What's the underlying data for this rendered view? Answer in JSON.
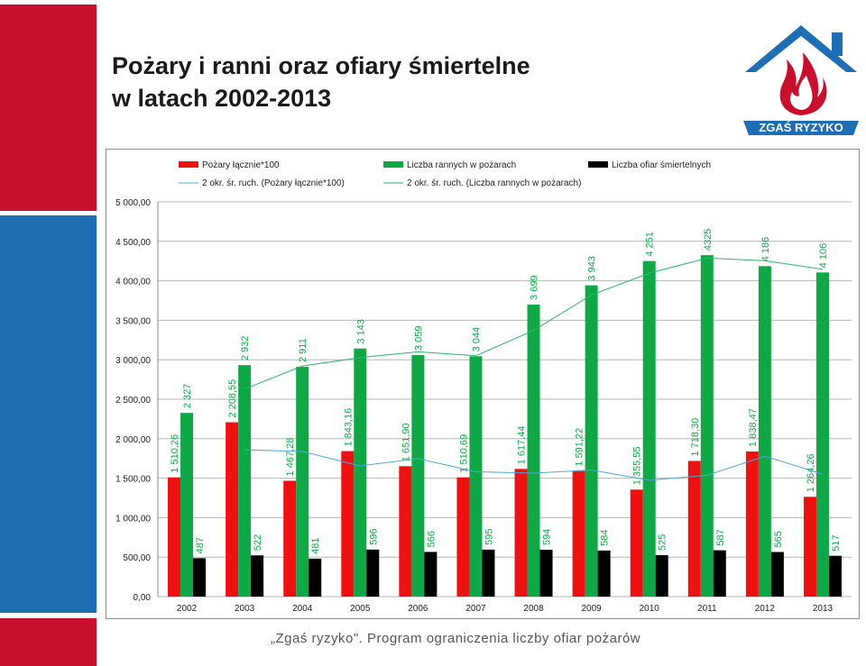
{
  "page": {
    "title_line1": "Pożary i ranni oraz ofiary śmiertelne",
    "title_line2": "w latach 2002-2013",
    "footer": "„Zgaś ryzyko\". Program ograniczenia liczby ofiar pożarów",
    "logo_text": "ZGAŚ RYZYKO",
    "colors": {
      "accent_red": "#c8102e",
      "accent_blue": "#1f6eb4",
      "logo_blue": "#1f6eb4",
      "flame_red": "#c8102e"
    }
  },
  "chart_data": {
    "type": "bar",
    "categories": [
      "2002",
      "2003",
      "2004",
      "2005",
      "2006",
      "2007",
      "2008",
      "2009",
      "2010",
      "2011",
      "2012",
      "2013"
    ],
    "series": [
      {
        "name": "Pożary łącznie*100",
        "color": "#ee1111",
        "values": [
          1510.26,
          2208.55,
          1467.28,
          1843.16,
          1651.9,
          1510.69,
          1617.44,
          1591.22,
          1355.55,
          1718.3,
          1838.47,
          1264.26
        ],
        "labels": [
          "1 510,26",
          "2 208,55",
          "1 467,28",
          "1 843,16",
          "1 651,90",
          "1 510,69",
          "1 617,44",
          "1 591,22",
          "1 355,55",
          "1 718,30",
          "1 838,47",
          "1 264,26"
        ]
      },
      {
        "name": "Liczba rannych w pożarach",
        "color": "#10a847",
        "values": [
          2327,
          2932,
          2911,
          3143,
          3059,
          3044,
          3699,
          3943,
          4251,
          4325,
          4186,
          4106
        ],
        "labels": [
          "2 327",
          "2 932",
          "2 911",
          "3 143",
          "3 059",
          "3 044",
          "3 699",
          "3 943",
          "4 251",
          "4325",
          "4 186",
          "4 106"
        ]
      },
      {
        "name": "Liczba ofiar śmiertelnych",
        "color": "#000000",
        "values": [
          487,
          522,
          481,
          596,
          566,
          595,
          594,
          584,
          525,
          587,
          565,
          517
        ],
        "labels": [
          "487",
          "522",
          "481",
          "596",
          "566",
          "595",
          "594",
          "584",
          "525",
          "587",
          "565",
          "517"
        ]
      }
    ],
    "trendlines": [
      {
        "name": "2 okr. śr. ruch. (Pożary łącznie*100)",
        "color": "#4aa8d8",
        "series_index": 0
      },
      {
        "name": "2 okr. śr. ruch. (Liczba rannych w pożarach)",
        "color": "#2bb56a",
        "series_index": 1
      }
    ],
    "ylim": [
      0,
      5000
    ],
    "ytick_values": [
      0,
      500,
      1000,
      1500,
      2000,
      2500,
      3000,
      3500,
      4000,
      4500,
      5000
    ],
    "ytick_labels": [
      "0,00",
      "500,00",
      "1 000,00",
      "1 500,00",
      "2 000,00",
      "2 500,00",
      "3 000,00",
      "3 500,00",
      "4 000,00",
      "4 500,00",
      "5 000,00"
    ],
    "grid": true,
    "legend_position": "top"
  }
}
